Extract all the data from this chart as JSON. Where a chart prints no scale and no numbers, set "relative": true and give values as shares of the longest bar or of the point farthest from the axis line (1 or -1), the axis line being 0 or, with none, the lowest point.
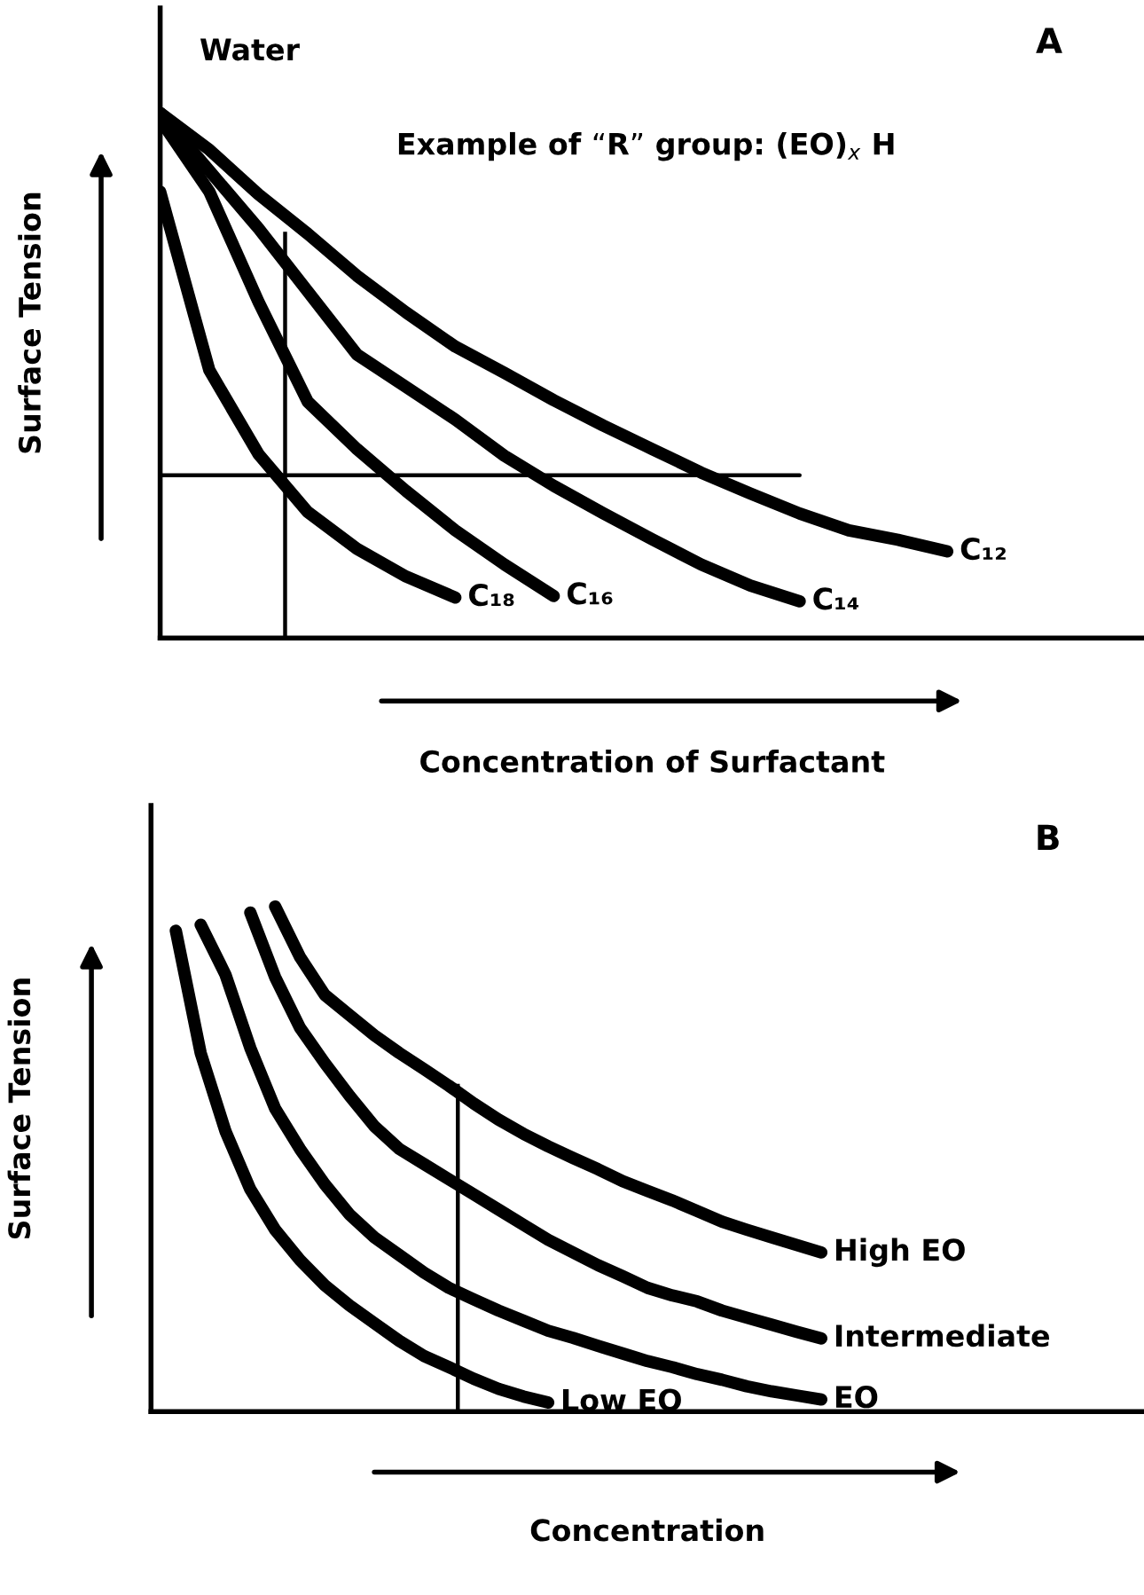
{
  "chart_data": [
    {
      "type": "line",
      "relative": true,
      "title": "A",
      "xlabel": "Concentration of Surfactant",
      "ylabel": "Surface Tension",
      "marker": "none",
      "line_style": "solid",
      "color": "#000000",
      "categories": [
        null,
        null,
        null,
        null,
        null,
        null,
        null,
        null,
        null,
        null,
        null,
        null,
        null,
        null,
        null,
        null,
        null,
        null,
        null,
        null,
        null
      ],
      "annotations": [
        "Water",
        "Example of “R” group: (EO)$_{x}$ H"
      ],
      "series": [
        {
          "name": "C₁₂",
          "values": [
            1,
            0.93,
            0.845,
            0.77,
            0.69,
            0.62,
            0.555,
            0.505,
            0.453,
            0.405,
            0.36,
            0.315,
            0.275,
            0.237,
            0.205,
            0.187,
            0.165,
            null,
            null,
            null,
            null
          ]
        },
        {
          "name": "C₁₄",
          "values": [
            1,
            0.89,
            0.78,
            0.66,
            0.54,
            0.478,
            0.416,
            0.347,
            0.29,
            0.238,
            0.188,
            0.14,
            0.1,
            0.07,
            null,
            null,
            null,
            null,
            null,
            null,
            null
          ]
        },
        {
          "name": "C₁₆",
          "values": [
            0.9875,
            0.85,
            0.64,
            0.45,
            0.36,
            0.28,
            0.205,
            0.14,
            0.08,
            null,
            null,
            null,
            null,
            null,
            null,
            null,
            null,
            null,
            null,
            null,
            null
          ]
        },
        {
          "name": "C₁₈",
          "values": [
            0.85,
            0.51,
            0.35,
            0.24,
            0.17,
            0.117,
            0.077,
            null,
            null,
            null,
            null,
            null,
            null,
            null,
            null,
            null,
            null,
            null,
            null,
            null,
            null
          ]
        },
        {
          "values": [
            0.31,
            0.31,
            0.31,
            0.31,
            0.31,
            0.31,
            0.31,
            0.31,
            0.31,
            0.31,
            0.31,
            0.31,
            0.31,
            0.31,
            null,
            null,
            null,
            null,
            null,
            null,
            null
          ]
        }
      ]
    },
    {
      "type": "line",
      "relative": true,
      "title": "B",
      "xlabel": "Concentration",
      "ylabel": "Surface Tension",
      "marker": "none",
      "line_style": "solid",
      "color": "#000000",
      "categories": [
        null,
        null,
        null,
        null,
        null,
        null,
        null,
        null,
        null,
        null,
        null,
        null,
        null,
        null,
        null,
        null,
        null,
        null,
        null,
        null,
        null,
        null,
        null,
        null,
        null,
        null,
        null,
        null,
        null,
        null,
        null,
        null,
        null,
        null,
        null,
        null,
        null,
        null,
        null,
        null,
        null
      ],
      "series": [
        {
          "name": "Low EO",
          "values": [
            null,
            0.952,
            0.71,
            0.555,
            0.44,
            0.36,
            0.3,
            0.25,
            0.21,
            0.175,
            0.14,
            0.11,
            0.088,
            0.065,
            0.045,
            0.03,
            0.018,
            null,
            null,
            null,
            null,
            null,
            null,
            null,
            null,
            null,
            null,
            null,
            null,
            null,
            null,
            null,
            null,
            null,
            null,
            null,
            null,
            null,
            null,
            null,
            null
          ]
        },
        {
          "name": "EO",
          "values": [
            null,
            null,
            0.964,
            0.865,
            0.72,
            0.6,
            0.52,
            0.45,
            0.39,
            0.345,
            0.31,
            0.275,
            0.245,
            0.222,
            0.2,
            0.18,
            0.16,
            0.146,
            0.13,
            0.115,
            0.1,
            0.088,
            0.074,
            0.063,
            0.05,
            0.04,
            0.032,
            0.024,
            null,
            null,
            null,
            null,
            null,
            null,
            null,
            null,
            null,
            null,
            null,
            null,
            null
          ]
        },
        {
          "name": "Intermediate",
          "values": [
            null,
            null,
            null,
            null,
            0.988,
            0.86,
            0.76,
            0.69,
            0.625,
            0.565,
            0.52,
            0.49,
            0.46,
            0.43,
            0.4,
            0.37,
            0.34,
            0.315,
            0.29,
            0.268,
            0.245,
            0.23,
            0.218,
            0.2,
            0.186,
            0.172,
            0.158,
            0.145,
            null,
            null,
            null,
            null,
            null,
            null,
            null,
            null,
            null,
            null,
            null,
            null,
            null
          ]
        },
        {
          "name": "High EO",
          "values": [
            null,
            null,
            null,
            null,
            null,
            1,
            0.9,
            0.825,
            0.785,
            0.745,
            0.71,
            0.678,
            0.645,
            0.61,
            0.578,
            0.55,
            0.525,
            0.502,
            0.48,
            0.456,
            0.437,
            0.418,
            0.397,
            0.376,
            0.36,
            0.345,
            0.33,
            0.315,
            null,
            null,
            null,
            null,
            null,
            null,
            null,
            null,
            null,
            null,
            null,
            null,
            null
          ]
        }
      ]
    }
  ]
}
